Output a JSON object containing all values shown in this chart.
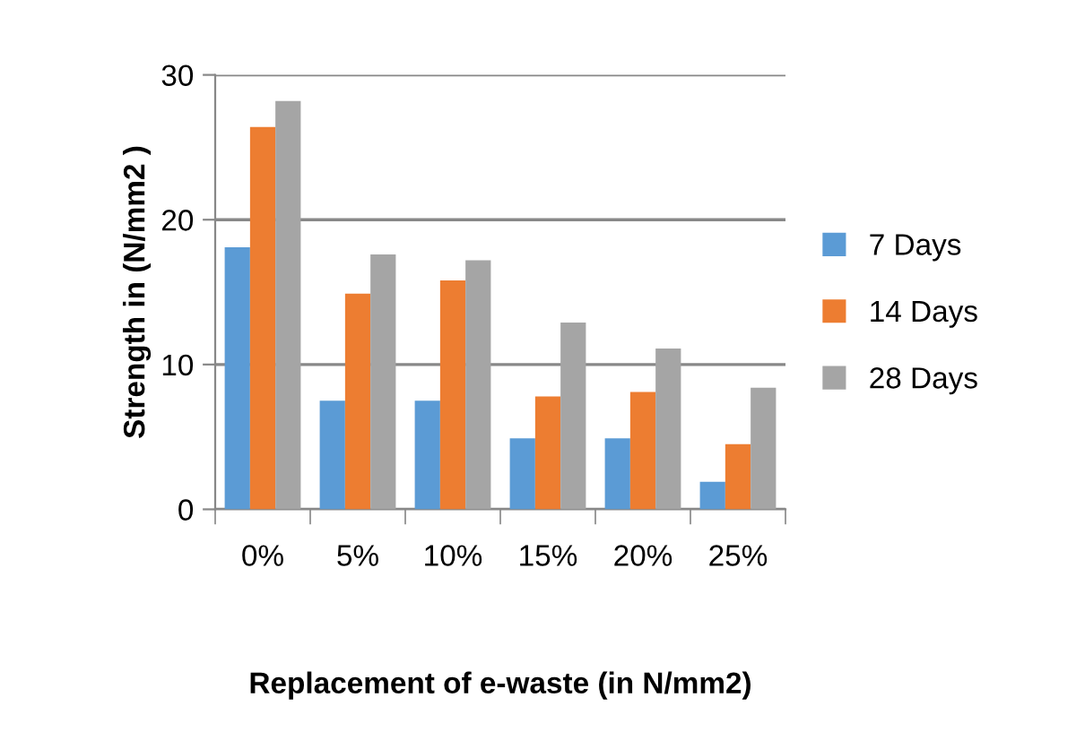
{
  "chart_data": {
    "type": "bar",
    "xlabel": "Replacement of e-waste (in N/mm2)",
    "ylabel": "Strength in (N/mm2 )",
    "categories": [
      "0%",
      "5%",
      "10%",
      "15%",
      "20%",
      "25%"
    ],
    "series": [
      {
        "name": "7 Days",
        "color": "#5b9bd5",
        "values": [
          18.1,
          7.5,
          7.5,
          4.9,
          4.9,
          1.9
        ]
      },
      {
        "name": "14 Days",
        "color": "#ed7d31",
        "values": [
          26.4,
          14.9,
          15.8,
          7.8,
          8.1,
          4.5
        ]
      },
      {
        "name": "28 Days",
        "color": "#a5a5a5",
        "values": [
          28.2,
          17.6,
          17.2,
          12.9,
          11.1,
          8.4
        ]
      }
    ],
    "ylim": [
      0,
      30
    ],
    "yticks": [
      0,
      10,
      20,
      30
    ],
    "grid": "y",
    "legend": "right"
  }
}
